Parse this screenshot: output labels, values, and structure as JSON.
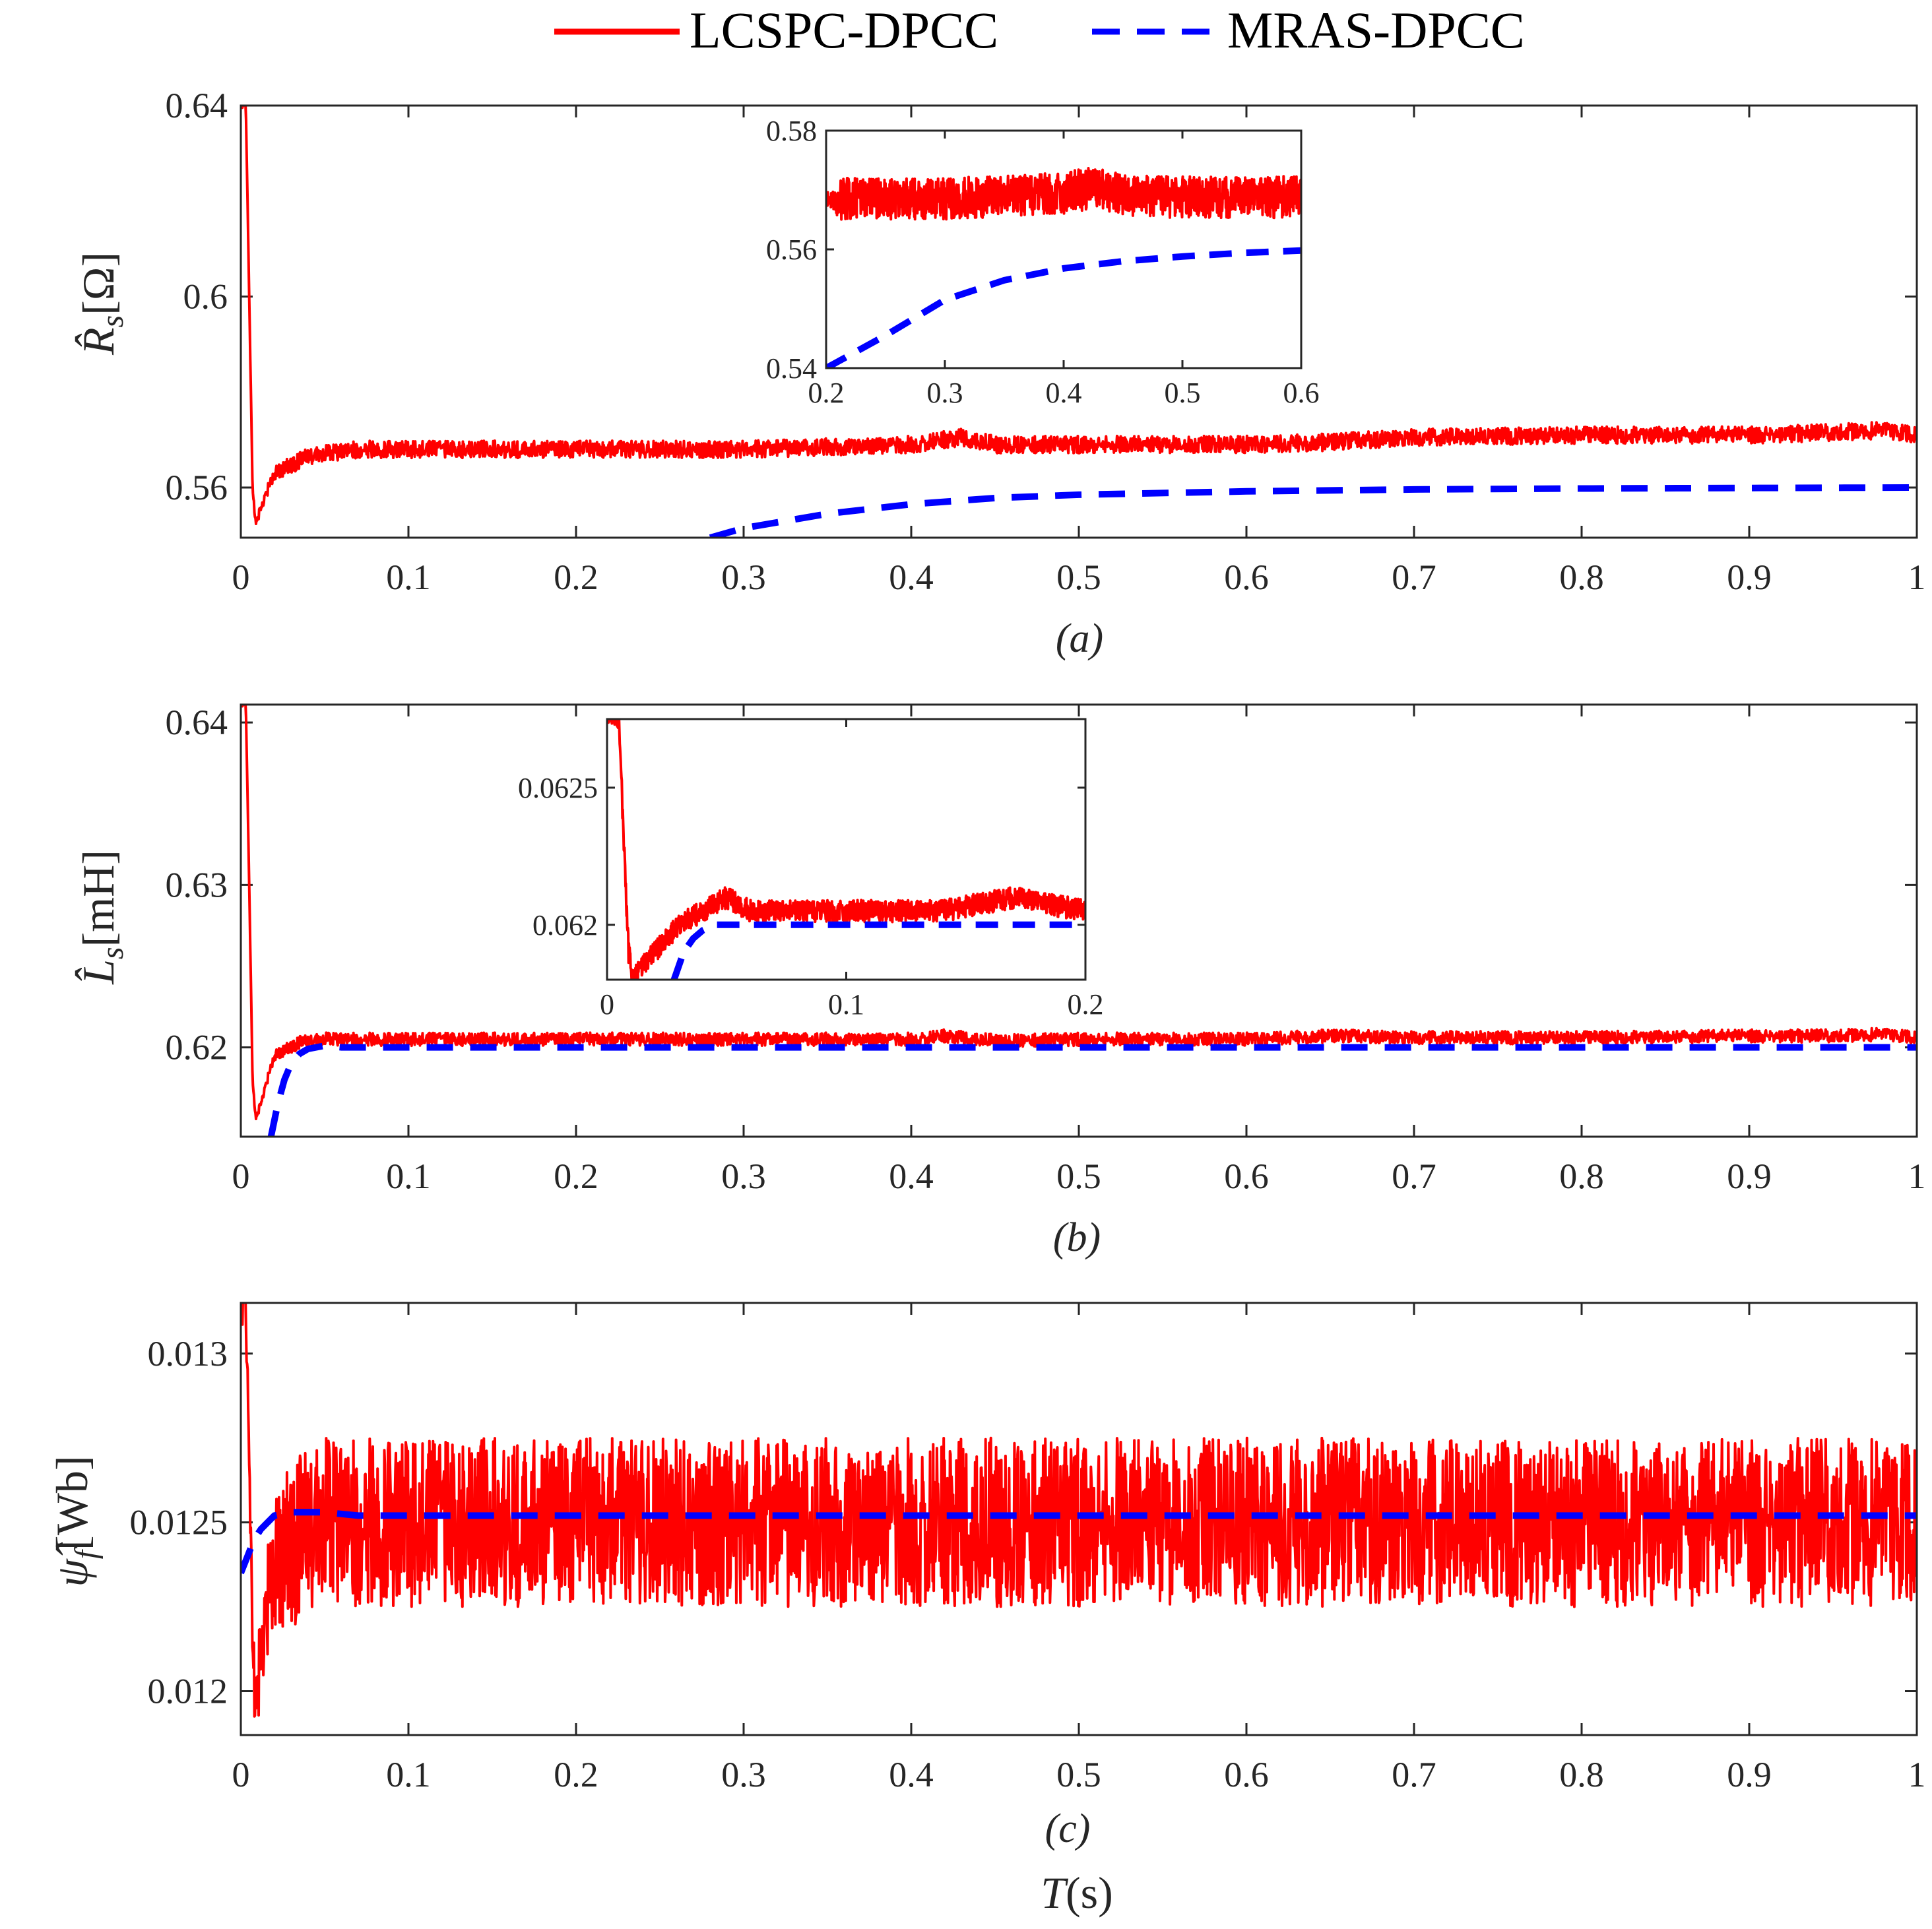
{
  "legend": [
    {
      "label": "LCSPC-DPCC",
      "color": "#ff0000",
      "style": "solid"
    },
    {
      "label": "MRAS-DPCC",
      "color": "#0000ff",
      "style": "dashed"
    }
  ],
  "x_axis_title": {
    "var": "T",
    "unit": "(s)"
  },
  "chart_data": [
    {
      "type": "line",
      "id": "a",
      "sublabel": "(a)",
      "ylabel": {
        "symbol": "R̂",
        "sub": "s",
        "unit": "[Ω]"
      },
      "xlim": [
        0,
        1
      ],
      "ylim": [
        0.5495,
        0.64
      ],
      "xticks": [
        0,
        0.1,
        0.2,
        0.3,
        0.4,
        0.5,
        0.6,
        0.7,
        0.8,
        0.9,
        1
      ],
      "xtick_labels": [
        "0",
        "0.1",
        "0.2",
        "0.3",
        "0.4",
        "0.5",
        "0.6",
        "0.7",
        "0.8",
        "0.9",
        "1"
      ],
      "yticks": [
        0.56,
        0.6,
        0.64
      ],
      "ytick_labels": [
        "0.56",
        "0.6",
        "0.64"
      ],
      "series": [
        {
          "name": "LCSPC-DPCC",
          "color": "#ff0000",
          "noise": 0.0018,
          "x": [
            0,
            0.003,
            0.005,
            0.007,
            0.009,
            0.012,
            0.02,
            0.04,
            0.07,
            0.1,
            0.2,
            0.3,
            0.35,
            0.4,
            0.43,
            0.45,
            0.5,
            0.6,
            0.65,
            0.7,
            0.8,
            0.9,
            0.95,
            0.98,
            1.0
          ],
          "y": [
            0.64,
            0.64,
            0.6,
            0.56,
            0.552,
            0.556,
            0.563,
            0.5665,
            0.568,
            0.568,
            0.568,
            0.568,
            0.5685,
            0.569,
            0.5705,
            0.569,
            0.569,
            0.569,
            0.5695,
            0.5705,
            0.571,
            0.571,
            0.5715,
            0.572,
            0.571
          ]
        },
        {
          "name": "MRAS-DPCC",
          "color": "#0000ff",
          "dash": true,
          "x": [
            0.28,
            0.3,
            0.35,
            0.4,
            0.45,
            0.5,
            0.6,
            0.7,
            0.8,
            0.9,
            1.0
          ],
          "y": [
            0.5495,
            0.5515,
            0.5545,
            0.5565,
            0.5578,
            0.5585,
            0.5592,
            0.5596,
            0.5598,
            0.5599,
            0.56
          ]
        }
      ],
      "inset": {
        "xlim": [
          0.2,
          0.6
        ],
        "ylim": [
          0.54,
          0.58
        ],
        "xticks": [
          0.2,
          0.3,
          0.4,
          0.5,
          0.6
        ],
        "xtick_labels": [
          "0.2",
          "0.3",
          "0.4",
          "0.5",
          "0.6"
        ],
        "yticks": [
          0.54,
          0.56,
          0.58
        ],
        "ytick_labels": [
          "0.54",
          "0.56",
          "0.58"
        ],
        "series": [
          {
            "name": "LCSPC-DPCC",
            "color": "#ff0000",
            "noise": 0.0035,
            "x": [
              0.2,
              0.3,
              0.35,
              0.4,
              0.43,
              0.45,
              0.5,
              0.6
            ],
            "y": [
              0.5685,
              0.5685,
              0.569,
              0.5695,
              0.5705,
              0.569,
              0.5688,
              0.5688
            ]
          },
          {
            "name": "MRAS-DPCC",
            "color": "#0000ff",
            "dash": true,
            "x": [
              0.2,
              0.25,
              0.3,
              0.35,
              0.4,
              0.45,
              0.5,
              0.55,
              0.6
            ],
            "y": [
              0.54,
              0.5455,
              0.5515,
              0.5548,
              0.5568,
              0.558,
              0.5588,
              0.5594,
              0.5598
            ]
          }
        ]
      }
    },
    {
      "type": "line",
      "id": "b",
      "sublabel": "(b)",
      "ylabel": {
        "symbol": "L̂",
        "sub": "s",
        "unit": "[mH]"
      },
      "xlim": [
        0,
        1
      ],
      "ylim": [
        0.6145,
        0.6411
      ],
      "xticks": [
        0,
        0.1,
        0.2,
        0.3,
        0.4,
        0.5,
        0.6,
        0.7,
        0.8,
        0.9,
        1
      ],
      "xtick_labels": [
        "0",
        "0.1",
        "0.2",
        "0.3",
        "0.4",
        "0.5",
        "0.6",
        "0.7",
        "0.8",
        "0.9",
        "1"
      ],
      "yticks": [
        0.62,
        0.63,
        0.64
      ],
      "ytick_labels": [
        "0.62",
        "0.63",
        "0.64"
      ],
      "series": [
        {
          "name": "LCSPC-DPCC",
          "color": "#ff0000",
          "noise": 0.0004,
          "x": [
            0,
            0.003,
            0.005,
            0.007,
            0.009,
            0.013,
            0.02,
            0.035,
            0.05,
            0.1,
            0.3,
            0.4,
            0.42,
            0.45,
            0.5,
            0.6,
            0.65,
            0.7,
            0.8,
            0.9,
            0.95,
            0.98,
            1.0
          ],
          "y": [
            0.6411,
            0.6411,
            0.63,
            0.618,
            0.6155,
            0.617,
            0.6195,
            0.6203,
            0.6205,
            0.6205,
            0.6205,
            0.6205,
            0.6207,
            0.6204,
            0.6205,
            0.6205,
            0.6207,
            0.6206,
            0.6206,
            0.6207,
            0.6207,
            0.6208,
            0.6206
          ]
        },
        {
          "name": "MRAS-DPCC",
          "color": "#0000ff",
          "dash": true,
          "x": [
            0.018,
            0.022,
            0.026,
            0.03,
            0.035,
            0.04,
            0.05,
            0.06,
            0.08,
            0.2,
            0.5,
            1.0
          ],
          "y": [
            0.6145,
            0.6165,
            0.618,
            0.619,
            0.6196,
            0.6199,
            0.6201,
            0.62,
            0.62,
            0.62,
            0.62,
            0.62
          ]
        }
      ],
      "inset": {
        "xlim": [
          0,
          0.2
        ],
        "ylim": [
          0.0618,
          0.06275
        ],
        "xticks": [
          0,
          0.1,
          0.2
        ],
        "xtick_labels": [
          "0",
          "0.1",
          "0.2"
        ],
        "yticks": [
          0.062,
          0.0625
        ],
        "ytick_labels": [
          "0.062",
          "0.0625"
        ],
        "series": [
          {
            "name": "LCSPC-DPCC",
            "color": "#ff0000",
            "noise": 4e-05,
            "x": [
              0,
              0.005,
              0.007,
              0.009,
              0.011,
              0.015,
              0.02,
              0.03,
              0.04,
              0.05,
              0.06,
              0.08,
              0.1,
              0.14,
              0.17,
              0.2
            ],
            "y": [
              0.06275,
              0.06275,
              0.0623,
              0.0619,
              0.0618,
              0.06185,
              0.0619,
              0.062,
              0.06205,
              0.0621,
              0.06205,
              0.06205,
              0.06205,
              0.06205,
              0.0621,
              0.06205
            ]
          },
          {
            "name": "MRAS-DPCC",
            "color": "#0000ff",
            "dash": true,
            "x": [
              0.028,
              0.032,
              0.036,
              0.04,
              0.045,
              0.05,
              0.06,
              0.08,
              0.1,
              0.15,
              0.2
            ],
            "y": [
              0.0618,
              0.0619,
              0.06195,
              0.06198,
              0.062,
              0.062,
              0.062,
              0.062,
              0.062,
              0.062,
              0.062
            ]
          }
        ]
      }
    },
    {
      "type": "line",
      "id": "c",
      "sublabel": "(c)",
      "ylabel": {
        "symbol": "ψ̂",
        "sub": "f",
        "unit": "[Wb]"
      },
      "xlim": [
        0,
        1
      ],
      "ylim": [
        0.01187,
        0.01315
      ],
      "xticks": [
        0,
        0.1,
        0.2,
        0.3,
        0.4,
        0.5,
        0.6,
        0.7,
        0.8,
        0.9,
        1
      ],
      "xtick_labels": [
        "0",
        "0.1",
        "0.2",
        "0.3",
        "0.4",
        "0.5",
        "0.6",
        "0.7",
        "0.8",
        "0.9",
        "1"
      ],
      "yticks": [
        0.012,
        0.0125,
        0.013
      ],
      "ytick_labels": [
        "0.012",
        "0.0125",
        "0.013"
      ],
      "series": [
        {
          "name": "LCSPC-DPCC",
          "color": "#ff0000",
          "noise": 0.00025,
          "x": [
            0,
            0.003,
            0.005,
            0.007,
            0.009,
            0.012,
            0.02,
            0.035,
            0.05,
            0.1,
            0.5,
            1.0
          ],
          "y": [
            0.01315,
            0.01315,
            0.0127,
            0.0122,
            0.0119,
            0.01215,
            0.01238,
            0.01246,
            0.0125,
            0.0125,
            0.0125,
            0.0125
          ]
        },
        {
          "name": "MRAS-DPCC",
          "color": "#0000ff",
          "dash": true,
          "x": [
            0,
            0.004,
            0.008,
            0.012,
            0.016,
            0.02,
            0.03,
            0.04,
            0.05,
            0.07,
            0.1,
            0.2,
            0.5,
            1.0
          ],
          "y": [
            0.01235,
            0.0124,
            0.01245,
            0.01248,
            0.0125,
            0.01252,
            0.01253,
            0.01253,
            0.01253,
            0.01252,
            0.01252,
            0.01252,
            0.01252,
            0.01252
          ]
        }
      ]
    }
  ]
}
